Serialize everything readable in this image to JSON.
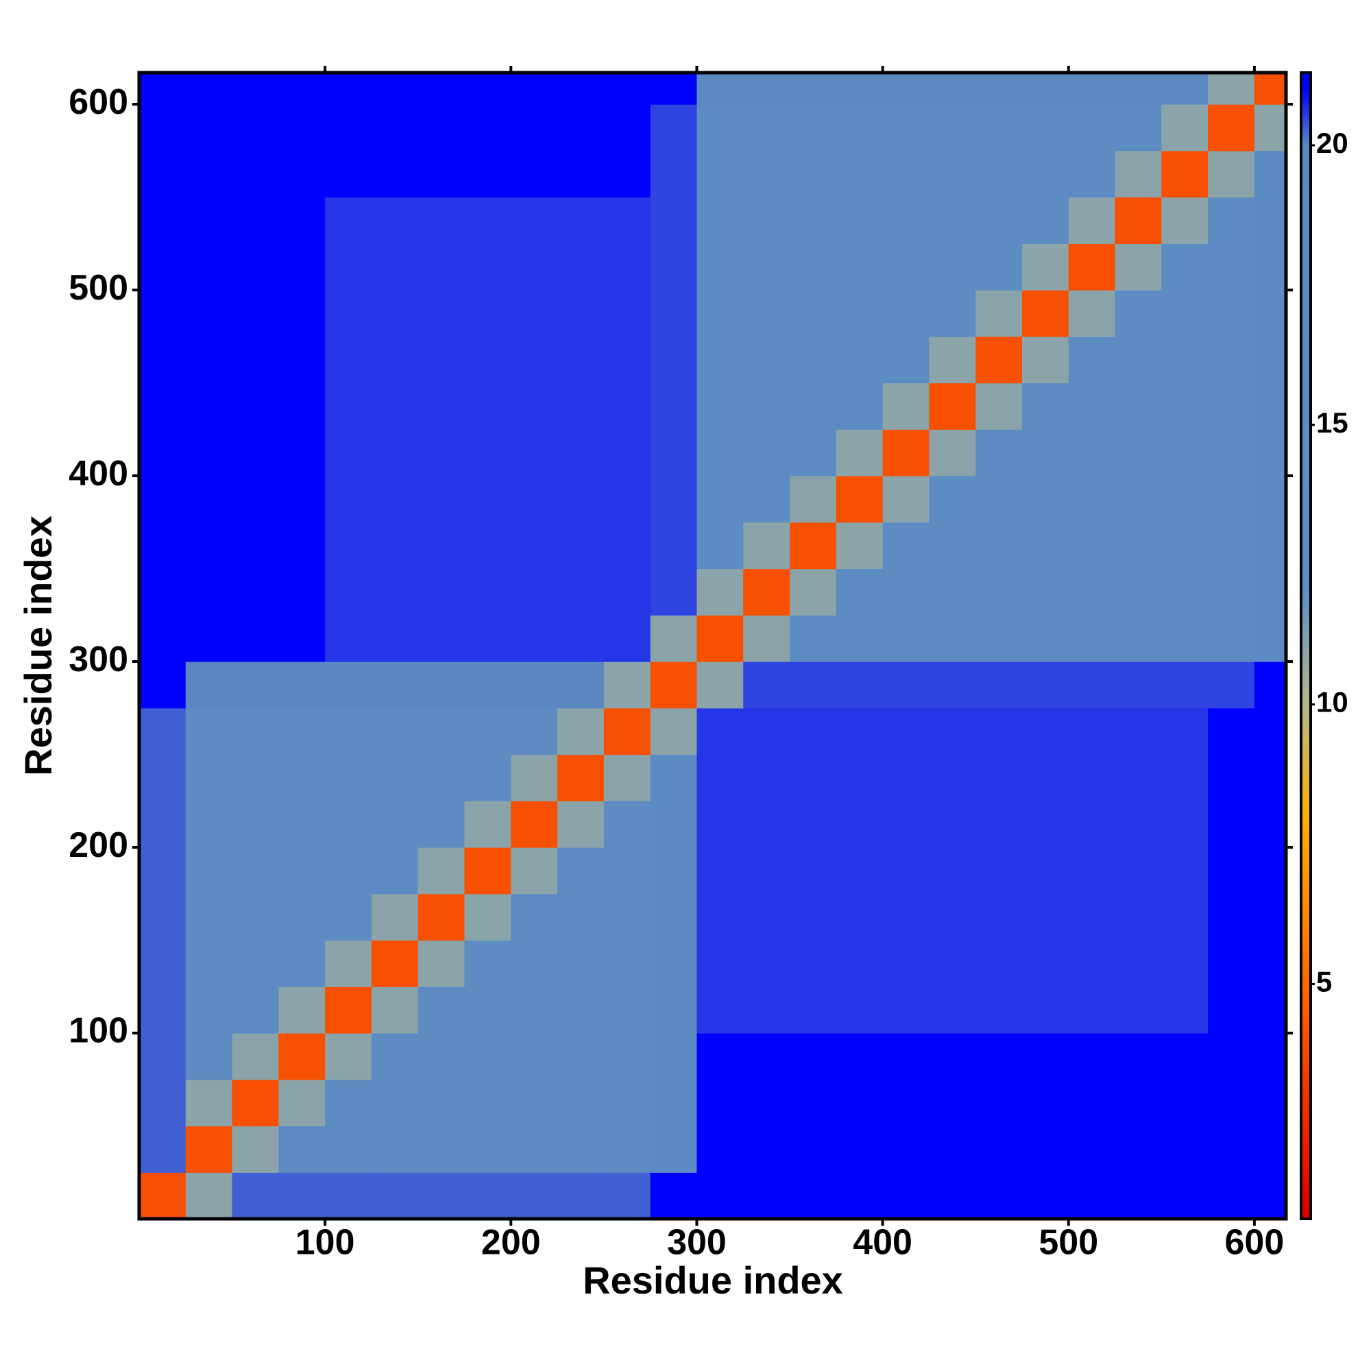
{
  "chart_data": {
    "type": "heatmap",
    "x_label": "Residue index",
    "y_label": "Residue index",
    "xlim": [
      0,
      617
    ],
    "ylim": [
      0,
      617
    ],
    "xticks": [
      100,
      200,
      300,
      400,
      500,
      600
    ],
    "yticks": [
      100,
      200,
      300,
      400,
      500,
      600
    ],
    "bins": [
      0,
      25,
      50,
      75,
      100,
      125,
      150,
      175,
      200,
      225,
      250,
      275,
      300,
      325,
      350,
      375,
      400,
      425,
      450,
      475,
      500,
      525,
      550,
      575,
      600,
      617
    ],
    "zlim": [
      0.8,
      21.3
    ],
    "zticks": [
      5,
      10,
      15,
      20
    ],
    "colorscale": [
      [
        1,
        "#e00000"
      ],
      [
        5,
        "#ff6a00"
      ],
      [
        8,
        "#ffb000"
      ],
      [
        10,
        "#b4b88c"
      ],
      [
        12,
        "#5f8fc6"
      ],
      [
        20,
        "#5b88c0"
      ],
      [
        21,
        "#0000ff"
      ]
    ],
    "z": [
      [
        4,
        11,
        20.3,
        20.3,
        20.3,
        20.3,
        20.3,
        20.3,
        20.3,
        20.3,
        20.3,
        21,
        21,
        21,
        21,
        21,
        21,
        21,
        21,
        21,
        21,
        21,
        21,
        21,
        21
      ],
      [
        20.3,
        4,
        11,
        17,
        17,
        17,
        17,
        17,
        17,
        17,
        17,
        18,
        21,
        21,
        21,
        21,
        21,
        21,
        21,
        21,
        21,
        21,
        21,
        21,
        21
      ],
      [
        20.3,
        11,
        4,
        11,
        17,
        17,
        17,
        17,
        17,
        17,
        17,
        18,
        21,
        21,
        21,
        21,
        21,
        21,
        21,
        21,
        21,
        21,
        21,
        21,
        21
      ],
      [
        20.3,
        17,
        11,
        4,
        11,
        17,
        17,
        17,
        17,
        17,
        17,
        18,
        21,
        21,
        21,
        21,
        21,
        21,
        21,
        21,
        21,
        21,
        21,
        21,
        21
      ],
      [
        20.3,
        17,
        17,
        11,
        4,
        11,
        17,
        17,
        17,
        17,
        17,
        18,
        20.6,
        20.6,
        20.6,
        20.6,
        20.6,
        20.6,
        20.6,
        20.6,
        20.6,
        20.6,
        20.6,
        21,
        21
      ],
      [
        20.3,
        17,
        17,
        17,
        11,
        4,
        11,
        17,
        17,
        17,
        17,
        18,
        20.6,
        20.6,
        20.6,
        20.6,
        20.6,
        20.6,
        20.6,
        20.6,
        20.6,
        20.6,
        20.6,
        21,
        21
      ],
      [
        20.3,
        17,
        17,
        17,
        17,
        11,
        4,
        11,
        17,
        17,
        17,
        18,
        20.6,
        20.6,
        20.6,
        20.6,
        20.6,
        20.6,
        20.6,
        20.6,
        20.6,
        20.6,
        20.6,
        21,
        21
      ],
      [
        20.3,
        17,
        17,
        17,
        17,
        17,
        11,
        4,
        11,
        17,
        17,
        18,
        20.6,
        20.6,
        20.6,
        20.6,
        20.6,
        20.6,
        20.6,
        20.6,
        20.6,
        20.6,
        20.6,
        21,
        21
      ],
      [
        20.3,
        17,
        17,
        17,
        17,
        17,
        17,
        11,
        4,
        11,
        17,
        18,
        20.6,
        20.6,
        20.6,
        20.6,
        20.6,
        20.6,
        20.6,
        20.6,
        20.6,
        20.6,
        20.6,
        21,
        21
      ],
      [
        20.3,
        17,
        17,
        17,
        17,
        17,
        17,
        17,
        11,
        4,
        11,
        18,
        20.6,
        20.6,
        20.6,
        20.6,
        20.6,
        20.6,
        20.6,
        20.6,
        20.6,
        20.6,
        20.6,
        21,
        21
      ],
      [
        20.3,
        17,
        17,
        17,
        17,
        17,
        17,
        17,
        17,
        11,
        4,
        11,
        20.6,
        20.6,
        20.6,
        20.6,
        20.6,
        20.6,
        20.6,
        20.6,
        20.6,
        20.6,
        20.6,
        21,
        21
      ],
      [
        21,
        19.5,
        19.5,
        19.5,
        19.5,
        19.5,
        19.5,
        19.5,
        19.5,
        19.5,
        11,
        4,
        11,
        20.5,
        20.5,
        20.5,
        20.5,
        20.5,
        20.5,
        20.5,
        20.5,
        20.5,
        20.5,
        20.5,
        21
      ],
      [
        21,
        21,
        21,
        21,
        20.6,
        20.6,
        20.6,
        20.6,
        20.6,
        20.6,
        20.6,
        11,
        4,
        11,
        16,
        16,
        16,
        16,
        16,
        16,
        16,
        16,
        16,
        16,
        18
      ],
      [
        21,
        21,
        21,
        21,
        20.6,
        20.6,
        20.6,
        20.6,
        20.6,
        20.6,
        20.6,
        20.5,
        11,
        4,
        11,
        16,
        16,
        16,
        16,
        16,
        16,
        16,
        16,
        16,
        18
      ],
      [
        21,
        21,
        21,
        21,
        20.6,
        20.6,
        20.6,
        20.6,
        20.6,
        20.6,
        20.6,
        20.5,
        16,
        11,
        4,
        11,
        16,
        16,
        16,
        16,
        16,
        16,
        16,
        16,
        18
      ],
      [
        21,
        21,
        21,
        21,
        20.6,
        20.6,
        20.6,
        20.6,
        20.6,
        20.6,
        20.6,
        20.5,
        16,
        16,
        11,
        4,
        11,
        16,
        16,
        16,
        16,
        16,
        16,
        16,
        18
      ],
      [
        21,
        21,
        21,
        21,
        20.6,
        20.6,
        20.6,
        20.6,
        20.6,
        20.6,
        20.6,
        20.5,
        16,
        16,
        16,
        11,
        4,
        11,
        16,
        16,
        16,
        16,
        16,
        16,
        18
      ],
      [
        21,
        21,
        21,
        21,
        20.6,
        20.6,
        20.6,
        20.6,
        20.6,
        20.6,
        20.6,
        20.5,
        16,
        16,
        16,
        16,
        11,
        4,
        11,
        16,
        16,
        16,
        16,
        16,
        18
      ],
      [
        21,
        21,
        21,
        21,
        20.6,
        20.6,
        20.6,
        20.6,
        20.6,
        20.6,
        20.6,
        20.5,
        16,
        16,
        16,
        16,
        16,
        11,
        4,
        11,
        16,
        16,
        16,
        16,
        18
      ],
      [
        21,
        21,
        21,
        21,
        20.6,
        20.6,
        20.6,
        20.6,
        20.6,
        20.6,
        20.6,
        20.5,
        16,
        16,
        16,
        16,
        16,
        16,
        11,
        4,
        11,
        16,
        16,
        16,
        18
      ],
      [
        21,
        21,
        21,
        21,
        20.6,
        20.6,
        20.6,
        20.6,
        20.6,
        20.6,
        20.6,
        20.5,
        16,
        16,
        16,
        16,
        16,
        16,
        16,
        11,
        4,
        11,
        16,
        16,
        18
      ],
      [
        21,
        21,
        21,
        21,
        20.6,
        20.6,
        20.6,
        20.6,
        20.6,
        20.6,
        20.6,
        20.5,
        16,
        16,
        16,
        16,
        16,
        16,
        16,
        16,
        11,
        4,
        11,
        16,
        18
      ],
      [
        21,
        21,
        21,
        21,
        21,
        21,
        21,
        21,
        21,
        21,
        21,
        20.5,
        16,
        16,
        16,
        16,
        16,
        16,
        16,
        16,
        16,
        11,
        4,
        11,
        18
      ],
      [
        21,
        21,
        21,
        21,
        21,
        21,
        21,
        21,
        21,
        21,
        21,
        20.5,
        16,
        16,
        16,
        16,
        16,
        16,
        16,
        16,
        16,
        16,
        11,
        4,
        11
      ],
      [
        21,
        21,
        21,
        21,
        21,
        21,
        21,
        21,
        21,
        21,
        21,
        21,
        18,
        18,
        18,
        18,
        18,
        18,
        18,
        18,
        18,
        18,
        18,
        11,
        4
      ]
    ]
  }
}
